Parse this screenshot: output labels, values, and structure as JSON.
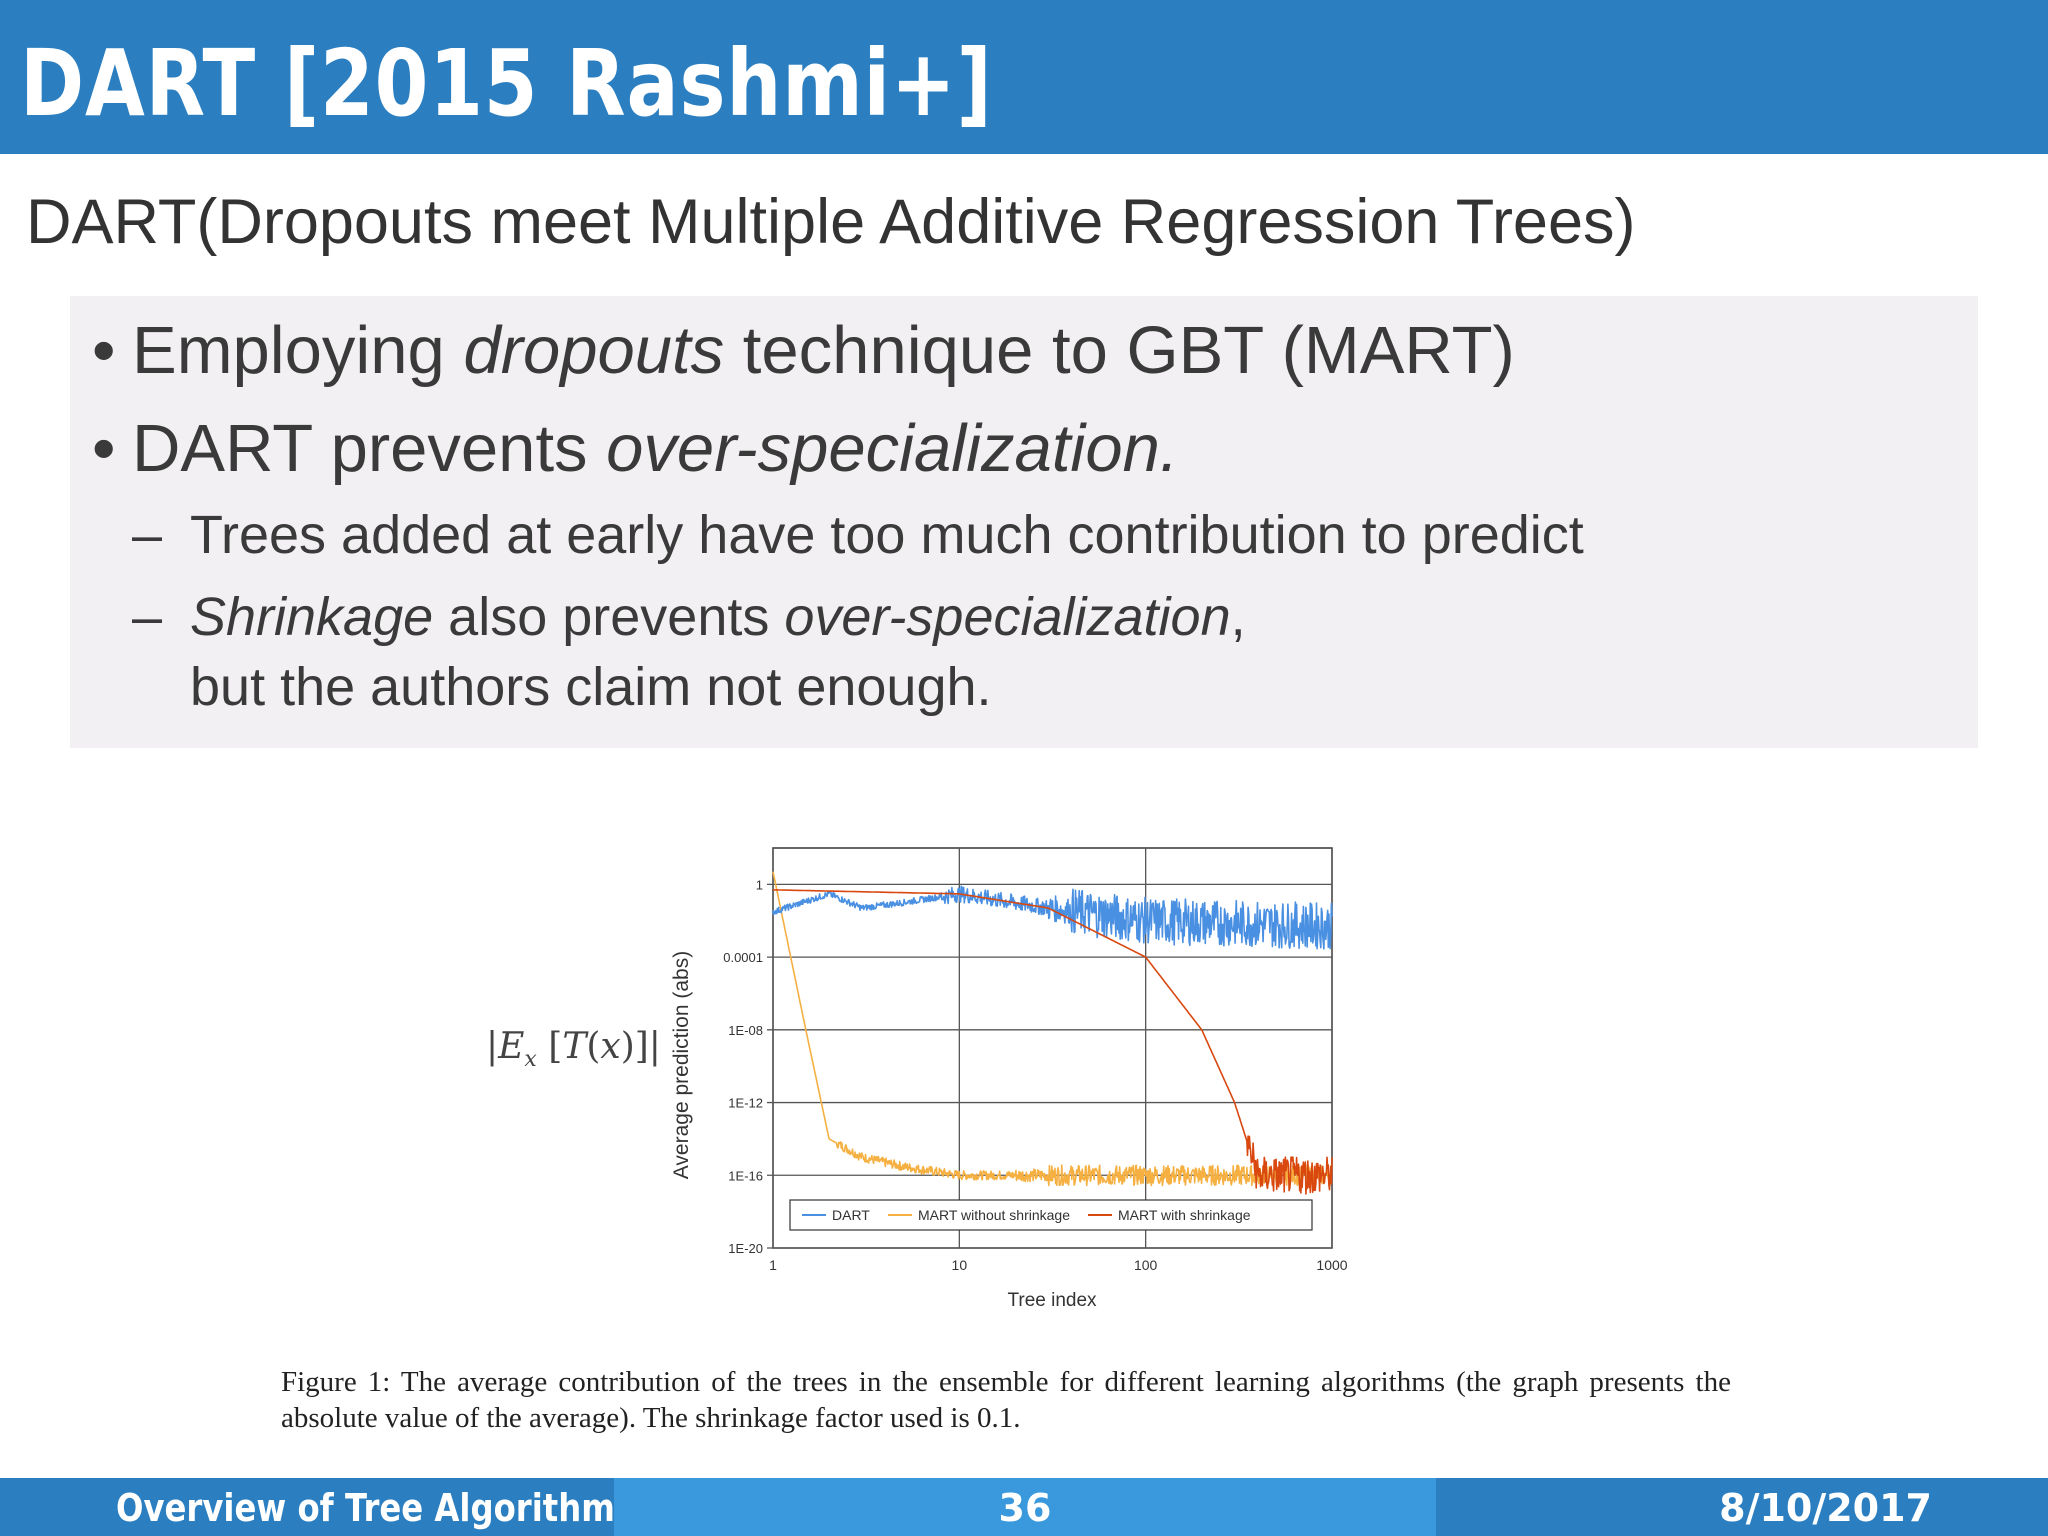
{
  "header": {
    "title": "DART [2015 Rashmi+]"
  },
  "subtitle": "DART(Dropouts meet Multiple Additive Regression Trees)",
  "bullets": {
    "b1": {
      "pre": "Employing ",
      "em": "dropouts",
      "post": " technique to GBT (MART)"
    },
    "b2": {
      "pre": "DART prevents ",
      "em": "over-specialization."
    },
    "s1": {
      "text": "Trees added at early have too much contribution to predict"
    },
    "s2": {
      "em1": "Shrinkage",
      "mid": " also prevents ",
      "em2": "over-specialization",
      "post": ",",
      "cont": "but the authors claim not enough."
    },
    "bullet_glyph": "•",
    "dash_glyph": "–"
  },
  "formula": "|E_x [T(x)]|",
  "chart_data": {
    "type": "line",
    "xlabel": "Tree index",
    "ylabel": "Average prediction (abs)",
    "x_scale": "log",
    "y_scale": "log",
    "xlim": [
      1,
      1000
    ],
    "ylim": [
      1e-20,
      100
    ],
    "x_ticks": [
      "1",
      "10",
      "100",
      "1000"
    ],
    "y_ticks": [
      "1",
      "0.0001",
      "1E-08",
      "1E-12",
      "1E-16",
      "1E-20"
    ],
    "grid": true,
    "legend": "bottom",
    "series": [
      {
        "name": "DART",
        "color": "#4a90e2",
        "x": [
          1,
          2,
          3,
          5,
          10,
          30,
          100,
          1000
        ],
        "y": [
          0.03,
          0.3,
          0.05,
          0.1,
          0.3,
          0.05,
          0.01,
          0.005
        ]
      },
      {
        "name": "MART without shrinkage",
        "color": "#f5b041",
        "x": [
          1,
          1.5,
          2,
          3,
          5,
          10,
          30,
          100,
          1000
        ],
        "y": [
          5,
          1e-08,
          1e-14,
          1e-15,
          3e-16,
          1e-16,
          1e-16,
          1e-16,
          1e-16
        ]
      },
      {
        "name": "MART with shrinkage",
        "color": "#d9480f",
        "x": [
          1,
          10,
          30,
          100,
          200,
          300,
          400,
          1000
        ],
        "y": [
          0.5,
          0.3,
          0.05,
          0.0001,
          1e-08,
          1e-12,
          1e-16,
          1e-16
        ]
      }
    ]
  },
  "caption": "Figure 1:  The average contribution of the trees in the ensemble for different learning algorithms (the graph presents the absolute value of the average). The shrinkage factor used is 0.1.",
  "footer": {
    "left": "Overview of Tree Algorithms",
    "center": "36",
    "right": "8/10/2017"
  }
}
